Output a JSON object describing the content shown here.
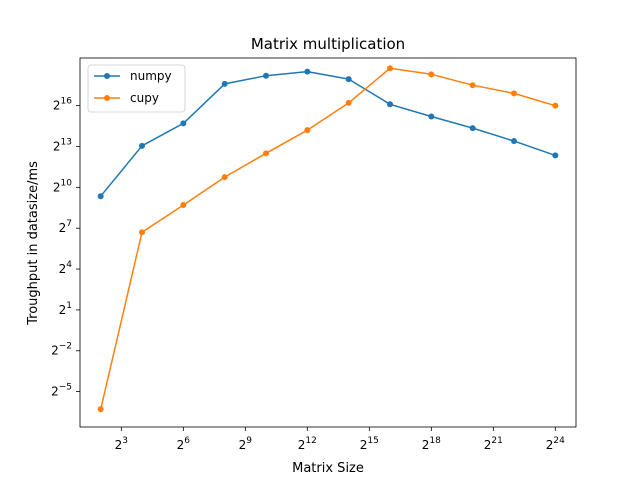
{
  "chart_data": {
    "type": "line",
    "title": "Matrix multiplication",
    "xlabel": "Matrix Size",
    "ylabel": "Troughput in datasize/ms",
    "xscale": "log2",
    "yscale": "log2",
    "xlim_log2": [
      1,
      25
    ],
    "ylim_log2": [
      -7.6,
      19.5
    ],
    "x_ticks_log2": [
      3,
      6,
      9,
      12,
      15,
      18,
      21,
      24
    ],
    "y_ticks_log2": [
      -5,
      -2,
      1,
      4,
      7,
      10,
      13,
      16
    ],
    "tick_base": "2",
    "x": [
      4,
      16,
      64,
      256,
      1024,
      4096,
      16384,
      65536,
      262144,
      1048576,
      4194304,
      16777216
    ],
    "series": [
      {
        "name": "numpy",
        "color": "#1f77b4",
        "x_log2": [
          2,
          4,
          6,
          8,
          10,
          12,
          14,
          16,
          18,
          20,
          22,
          24
        ],
        "y_log2": [
          9.35,
          13.05,
          14.7,
          17.6,
          18.2,
          18.5,
          17.95,
          16.1,
          15.2,
          14.35,
          13.4,
          12.35
        ]
      },
      {
        "name": "cupy",
        "color": "#ff7f0e",
        "x_log2": [
          2,
          4,
          6,
          8,
          10,
          12,
          14,
          16,
          18,
          20,
          22,
          24
        ],
        "y_log2": [
          -6.3,
          6.7,
          8.7,
          10.75,
          12.5,
          14.2,
          16.2,
          18.75,
          18.3,
          17.5,
          16.9,
          16.0
        ]
      }
    ],
    "legend_position": "upper-left",
    "grid": false
  }
}
